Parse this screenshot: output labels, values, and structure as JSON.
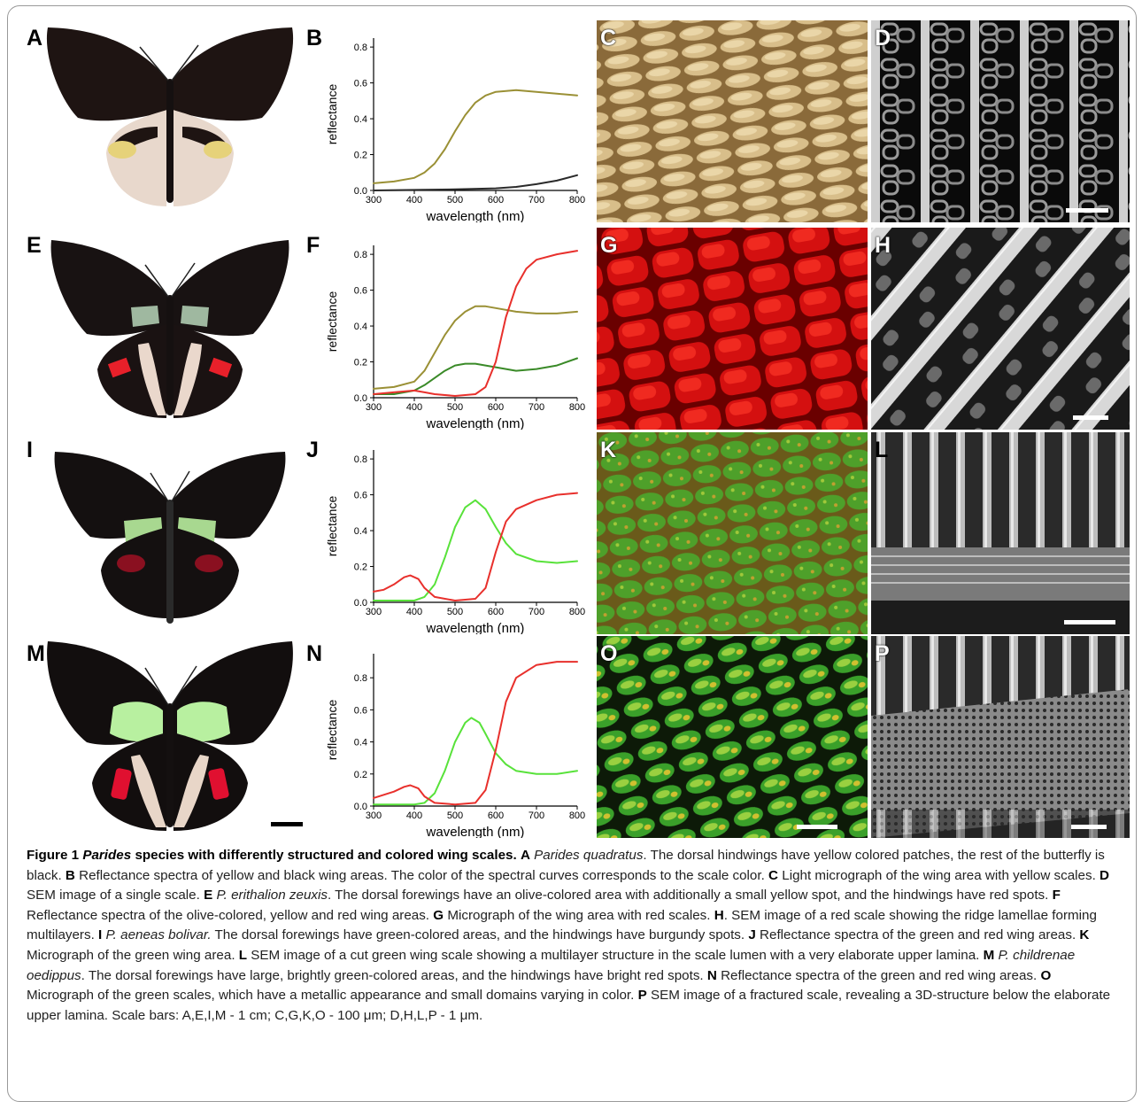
{
  "panel_letters": {
    "A": "A",
    "B": "B",
    "C": "C",
    "D": "D",
    "E": "E",
    "F": "F",
    "G": "G",
    "H": "H",
    "I": "I",
    "J": "J",
    "K": "K",
    "L": "L",
    "M": "M",
    "N": "N",
    "O": "O",
    "P": "P"
  },
  "colors": {
    "olive": "#9a9035",
    "dark": "#2a2a2a",
    "red": "#e8302c",
    "green_dark": "#3a8a28",
    "green_light": "#58e23a",
    "red_micro": "#d01010",
    "green_micro": "#4aa82a",
    "yellow_micro": "#c9a86a",
    "frame": "#999999"
  },
  "chart_data": [
    {
      "panel": "B",
      "type": "line",
      "xlabel": "wavelength (nm)",
      "ylabel": "reflectance",
      "xlim": [
        300,
        800
      ],
      "ylim": [
        0,
        0.85
      ],
      "xticks": [
        300,
        400,
        500,
        600,
        700,
        800
      ],
      "yticks": [
        0.0,
        0.2,
        0.4,
        0.6,
        0.8
      ],
      "series": [
        {
          "color": "#9a9035",
          "x": [
            300,
            350,
            400,
            425,
            450,
            475,
            500,
            525,
            550,
            575,
            600,
            650,
            700,
            750,
            800
          ],
          "y": [
            0.04,
            0.05,
            0.07,
            0.1,
            0.15,
            0.23,
            0.33,
            0.42,
            0.49,
            0.53,
            0.55,
            0.56,
            0.55,
            0.54,
            0.53
          ]
        },
        {
          "color": "#2a2a2a",
          "x": [
            300,
            400,
            500,
            600,
            650,
            700,
            750,
            800
          ],
          "y": [
            0.0,
            0.003,
            0.006,
            0.012,
            0.02,
            0.035,
            0.055,
            0.085
          ]
        }
      ]
    },
    {
      "panel": "F",
      "type": "line",
      "xlabel": "wavelength (nm)",
      "ylabel": "reflectance",
      "xlim": [
        300,
        800
      ],
      "ylim": [
        0,
        0.85
      ],
      "xticks": [
        300,
        400,
        500,
        600,
        700,
        800
      ],
      "yticks": [
        0.0,
        0.2,
        0.4,
        0.6,
        0.8
      ],
      "series": [
        {
          "color": "#9a9035",
          "x": [
            300,
            350,
            400,
            425,
            450,
            475,
            500,
            525,
            550,
            575,
            600,
            650,
            700,
            750,
            800
          ],
          "y": [
            0.05,
            0.06,
            0.09,
            0.15,
            0.25,
            0.35,
            0.43,
            0.48,
            0.51,
            0.51,
            0.5,
            0.48,
            0.47,
            0.47,
            0.48
          ]
        },
        {
          "color": "#3a8a28",
          "x": [
            300,
            350,
            400,
            425,
            450,
            475,
            500,
            525,
            550,
            575,
            600,
            650,
            700,
            750,
            800
          ],
          "y": [
            0.02,
            0.02,
            0.04,
            0.07,
            0.11,
            0.15,
            0.18,
            0.19,
            0.19,
            0.18,
            0.17,
            0.15,
            0.16,
            0.18,
            0.22
          ]
        },
        {
          "color": "#e8302c",
          "x": [
            300,
            350,
            400,
            425,
            450,
            500,
            550,
            575,
            600,
            625,
            650,
            675,
            700,
            750,
            800
          ],
          "y": [
            0.02,
            0.03,
            0.04,
            0.03,
            0.02,
            0.01,
            0.02,
            0.06,
            0.2,
            0.45,
            0.62,
            0.72,
            0.77,
            0.8,
            0.82
          ]
        }
      ]
    },
    {
      "panel": "J",
      "type": "line",
      "xlabel": "wavelength (nm)",
      "ylabel": "reflectance",
      "xlim": [
        300,
        800
      ],
      "ylim": [
        0,
        0.85
      ],
      "xticks": [
        300,
        400,
        500,
        600,
        700,
        800
      ],
      "yticks": [
        0.0,
        0.2,
        0.4,
        0.6,
        0.8
      ],
      "series": [
        {
          "color": "#58e23a",
          "x": [
            300,
            350,
            400,
            425,
            450,
            475,
            500,
            525,
            550,
            575,
            600,
            625,
            650,
            700,
            750,
            800
          ],
          "y": [
            0.01,
            0.01,
            0.01,
            0.03,
            0.1,
            0.25,
            0.42,
            0.53,
            0.57,
            0.52,
            0.42,
            0.33,
            0.27,
            0.23,
            0.22,
            0.23
          ]
        },
        {
          "color": "#e8302c",
          "x": [
            300,
            325,
            350,
            375,
            390,
            410,
            425,
            450,
            500,
            550,
            575,
            600,
            625,
            650,
            700,
            750,
            800
          ],
          "y": [
            0.06,
            0.07,
            0.1,
            0.14,
            0.15,
            0.13,
            0.08,
            0.03,
            0.01,
            0.02,
            0.08,
            0.28,
            0.45,
            0.52,
            0.57,
            0.6,
            0.61
          ]
        }
      ]
    },
    {
      "panel": "N",
      "type": "line",
      "xlabel": "wavelength (nm)",
      "ylabel": "reflectance",
      "xlim": [
        300,
        800
      ],
      "ylim": [
        0,
        0.95
      ],
      "xticks": [
        300,
        400,
        500,
        600,
        700,
        800
      ],
      "yticks": [
        0.0,
        0.2,
        0.4,
        0.6,
        0.8
      ],
      "series": [
        {
          "color": "#58e23a",
          "x": [
            300,
            350,
            400,
            425,
            450,
            475,
            500,
            525,
            540,
            560,
            575,
            600,
            625,
            650,
            700,
            750,
            800
          ],
          "y": [
            0.01,
            0.01,
            0.01,
            0.02,
            0.08,
            0.22,
            0.4,
            0.52,
            0.55,
            0.52,
            0.45,
            0.33,
            0.26,
            0.22,
            0.2,
            0.2,
            0.22
          ]
        },
        {
          "color": "#e8302c",
          "x": [
            300,
            325,
            350,
            375,
            390,
            410,
            425,
            450,
            500,
            550,
            575,
            600,
            625,
            650,
            700,
            750,
            800
          ],
          "y": [
            0.05,
            0.07,
            0.09,
            0.12,
            0.13,
            0.11,
            0.06,
            0.02,
            0.01,
            0.02,
            0.1,
            0.35,
            0.65,
            0.8,
            0.88,
            0.9,
            0.9
          ]
        }
      ]
    }
  ],
  "caption": {
    "label": "Figure 1",
    "genus": "Parides",
    "title_rest": "species with differently structured and colored wing scales.",
    "A_letter": "A",
    "A_name": "Parides quadratus",
    "A_text": ". The dorsal hindwings have yellow colored patches, the rest of the butterfly is black.",
    "B_letter": "B",
    "B_text": "Reflectance spectra of yellow and black wing areas. The color of the spectral curves corresponds to the scale color.",
    "C_letter": "C",
    "C_text": "Light micrograph of the wing area with yellow scales.",
    "D_letter": "D",
    "D_text": "SEM image of a single scale.",
    "E_letter": "E",
    "E_name": "P. erithalion zeuxis",
    "E_text": ". The dorsal forewings have an olive-colored area with additionally a small yellow spot, and the hindwings have red spots.",
    "F_letter": "F",
    "F_text": "Reflectance spectra of the olive-colored, yellow and red wing areas.",
    "G_letter": "G",
    "G_text": "Micrograph of the wing area with red scales.",
    "H_letter": "H",
    "H_text": ". SEM image of a red scale showing the ridge lamellae forming multilayers.",
    "I_letter": "I",
    "I_name": "P. aeneas bolivar.",
    "I_text": "The dorsal forewings have green-colored areas, and the hindwings have burgundy spots.",
    "J_letter": "J",
    "J_text": "Reflectance spectra of the green and red wing areas.",
    "K_letter": "K",
    "K_text": "Micrograph of the green wing area.",
    "L_letter": "L",
    "L_text": "SEM image of a cut green wing scale showing a multilayer structure in the scale lumen with a very elaborate upper lamina.",
    "M_letter": "M",
    "M_name": "P. childrenae oedippus",
    "M_text": ". The dorsal forewings have large, brightly green-colored areas, and the hindwings have bright red spots.",
    "N_letter": "N",
    "N_text": "Reflectance spectra of the green and red wing areas.",
    "O_letter": "O",
    "O_text": "Micrograph of the green scales, which have a metallic appearance and small domains varying in color.",
    "P_letter": "P",
    "P_text": "SEM image of a fractured scale, revealing a 3D-structure below the elaborate upper lamina.",
    "scale_bars": "Scale bars: A,E,I,M - 1 cm; C,G,K,O - 100 μm; D,H,L,P - 1 μm."
  }
}
